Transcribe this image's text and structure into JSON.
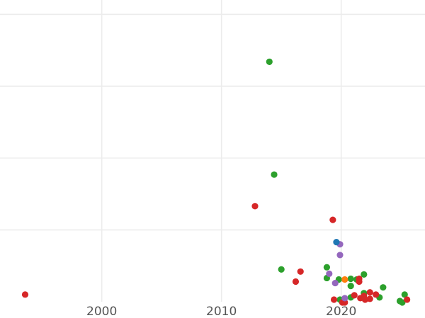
{
  "chart_data": {
    "type": "scatter",
    "title": "",
    "xlabel": "",
    "ylabel": "",
    "xlim": [
      1991.5,
      2027
    ],
    "ylim": [
      0,
      42
    ],
    "xticks": [
      2000,
      2010,
      2020
    ],
    "xtick_labels": [
      "2000",
      "2010",
      "2020"
    ],
    "ygrid": [
      10,
      20,
      30,
      40
    ],
    "grid": true,
    "legend": "none",
    "colors": {
      "blue": "#1f77b4",
      "orange": "#ff7f0e",
      "green": "#2ca02c",
      "red": "#d62728",
      "purple": "#9467bd"
    },
    "series": [
      {
        "name": "green",
        "color": "#2ca02c",
        "points": [
          {
            "x": 2014.0,
            "y": 33.4
          },
          {
            "x": 2014.4,
            "y": 17.7
          },
          {
            "x": 2015.0,
            "y": 4.5
          },
          {
            "x": 2018.8,
            "y": 4.8
          },
          {
            "x": 2018.8,
            "y": 3.3
          },
          {
            "x": 2019.8,
            "y": 3.1
          },
          {
            "x": 2020.8,
            "y": 3.2
          },
          {
            "x": 2020.8,
            "y": 2.2
          },
          {
            "x": 2021.3,
            "y": 3.1
          },
          {
            "x": 2021.9,
            "y": 3.8
          },
          {
            "x": 2021.9,
            "y": 1.2
          },
          {
            "x": 2023.5,
            "y": 2.0
          },
          {
            "x": 2023.2,
            "y": 0.6
          },
          {
            "x": 2025.3,
            "y": 1.0
          },
          {
            "x": 2024.9,
            "y": 0.1
          },
          {
            "x": 2025.1,
            "y": -0.1
          },
          {
            "x": 2019.9,
            "y": 0.3
          },
          {
            "x": 2020.8,
            "y": 0.6
          }
        ]
      },
      {
        "name": "red",
        "color": "#d62728",
        "points": [
          {
            "x": 1993.6,
            "y": 1.0
          },
          {
            "x": 2012.8,
            "y": 13.3
          },
          {
            "x": 2019.3,
            "y": 11.4
          },
          {
            "x": 2016.2,
            "y": 2.8
          },
          {
            "x": 2016.6,
            "y": 4.2
          },
          {
            "x": 2021.5,
            "y": 3.2
          },
          {
            "x": 2021.5,
            "y": 2.8
          },
          {
            "x": 2019.4,
            "y": 0.3
          },
          {
            "x": 2020.1,
            "y": -0.1
          },
          {
            "x": 2020.3,
            "y": -0.1
          },
          {
            "x": 2021.1,
            "y": 0.9
          },
          {
            "x": 2021.6,
            "y": 0.5
          },
          {
            "x": 2022.0,
            "y": 0.3
          },
          {
            "x": 2021.9,
            "y": 0.8
          },
          {
            "x": 2022.4,
            "y": 0.4
          },
          {
            "x": 2022.4,
            "y": 1.3
          },
          {
            "x": 2022.9,
            "y": 1.0
          },
          {
            "x": 2025.5,
            "y": 0.3
          }
        ]
      },
      {
        "name": "purple",
        "color": "#9467bd",
        "points": [
          {
            "x": 2019.9,
            "y": 8.0
          },
          {
            "x": 2019.9,
            "y": 6.5
          },
          {
            "x": 2019.0,
            "y": 3.9
          },
          {
            "x": 2019.5,
            "y": 2.6
          },
          {
            "x": 2020.3,
            "y": 0.5
          }
        ]
      },
      {
        "name": "blue",
        "color": "#1f77b4",
        "points": [
          {
            "x": 2019.6,
            "y": 8.3
          }
        ]
      },
      {
        "name": "orange",
        "color": "#ff7f0e",
        "points": [
          {
            "x": 2020.3,
            "y": 3.1
          }
        ]
      }
    ]
  }
}
